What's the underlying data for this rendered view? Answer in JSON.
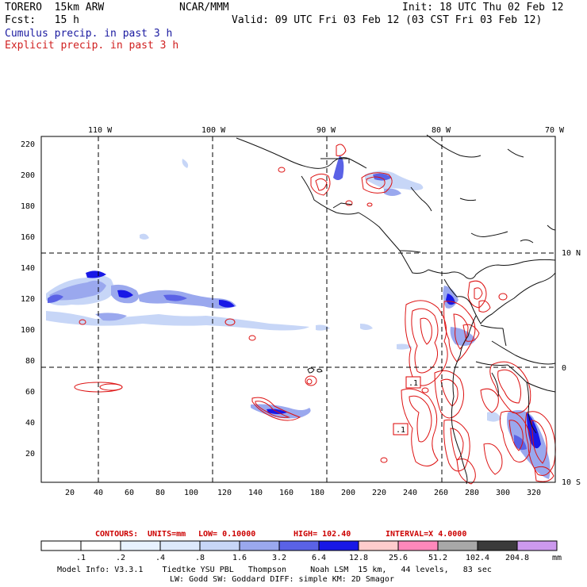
{
  "header": {
    "model": "TORERO  15km ARW",
    "center": "NCAR/MMM",
    "init": "Init: 18 UTC Thu 02 Feb 12",
    "fcst": "Fcst:   15 h",
    "valid": "Valid: 09 UTC Fri 03 Feb 12 (03 CST Fri 03 Feb 12)",
    "line_cumulus": "Cumulus precip. in past 3 h",
    "line_explicit": "Explicit precip. in past 3 h"
  },
  "map": {
    "lon_labels": [
      "110 W",
      "100 W",
      "90 W",
      "80 W",
      "70 W"
    ],
    "lat_labels": [
      "10 N",
      "0",
      "10 S"
    ],
    "x_ticks": [
      "20",
      "40",
      "60",
      "80",
      "100",
      "120",
      "140",
      "160",
      "180",
      "200",
      "220",
      "240",
      "260",
      "280",
      "300",
      "320"
    ],
    "y_ticks": [
      "220",
      "200",
      "180",
      "160",
      "140",
      "120",
      "100",
      "80",
      "60",
      "40",
      "20"
    ],
    "box_labels": [
      ".1",
      ".1"
    ]
  },
  "contours": {
    "text_contours": "CONTOURS:",
    "text_units": "UNITS=mm",
    "text_low": "LOW= 0.10000",
    "text_high": "HIGH=  102.40",
    "text_interval": "INTERVAL=X  4.0000"
  },
  "legend": {
    "labels": [
      ".1",
      ".2",
      ".4",
      ".8",
      "1.6",
      "3.2",
      "6.4",
      "12.8",
      "25.6",
      "51.2",
      "102.4",
      "204.8"
    ],
    "unit": "mm",
    "colors": [
      "#ffffff",
      "#ffffff",
      "#e8f2ff",
      "#dde9fb",
      "#c7d6f7",
      "#9aa8ee",
      "#5a62e6",
      "#1818e6",
      "#ffcccc",
      "#ff88bb",
      "#a8a8a8",
      "#3a3a3a",
      "#cc99ee"
    ]
  },
  "footer": {
    "line1": "Model Info: V3.3.1    Tiedtke YSU PBL   Thompson     Noah LSM  15 km,   44 levels,   83 sec",
    "line2": "LW: Godd SW: Goddard DIFF: simple KM: 2D Smagor"
  }
}
